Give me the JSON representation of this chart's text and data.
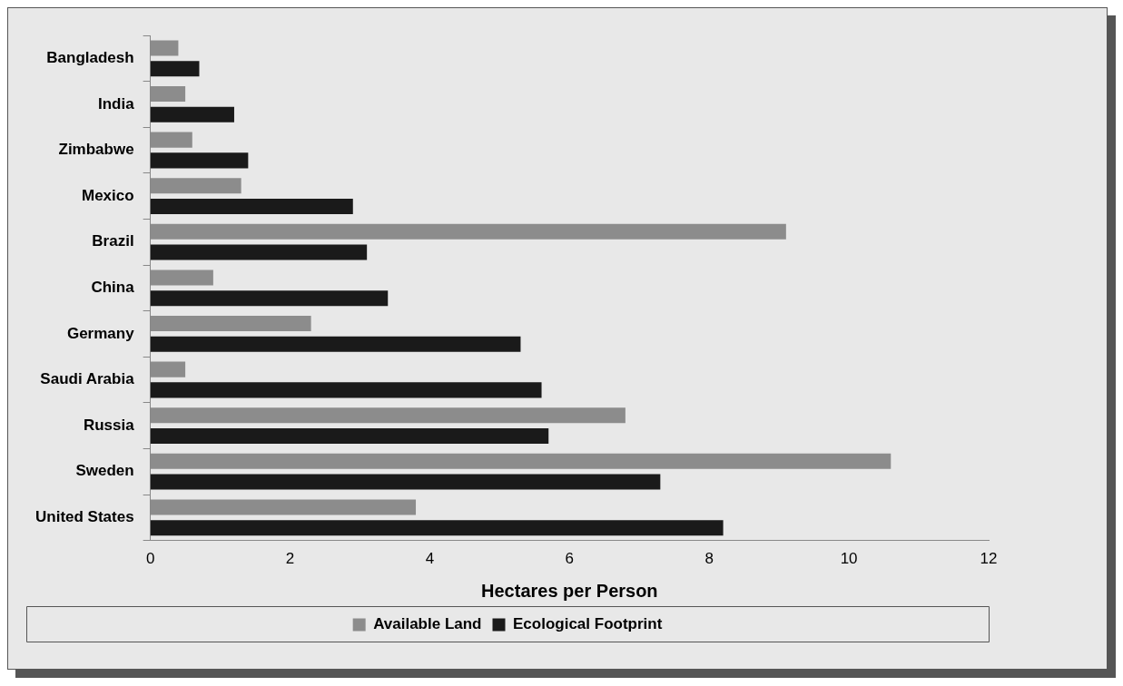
{
  "chart_data": {
    "type": "bar",
    "orientation": "horizontal",
    "xlabel": "Hectares per Person",
    "categories": [
      "Bangladesh",
      "India",
      "Zimbabwe",
      "Mexico",
      "Brazil",
      "China",
      "Germany",
      "Saudi Arabia",
      "Russia",
      "Sweden",
      "United States"
    ],
    "series": [
      {
        "name": "Available Land",
        "color": "#8c8c8c",
        "values": [
          0.4,
          0.5,
          0.6,
          1.3,
          9.1,
          0.9,
          2.3,
          0.5,
          6.8,
          10.6,
          3.8
        ]
      },
      {
        "name": "Ecological Footprint",
        "color": "#1a1a1a",
        "values": [
          0.7,
          1.2,
          1.4,
          2.9,
          3.1,
          3.4,
          5.3,
          5.6,
          5.7,
          7.3,
          8.2
        ]
      }
    ],
    "xlim": [
      0,
      12
    ],
    "xticks": [
      0,
      2,
      4,
      6,
      8,
      10,
      12
    ],
    "grid": false,
    "legend": "bottom"
  }
}
